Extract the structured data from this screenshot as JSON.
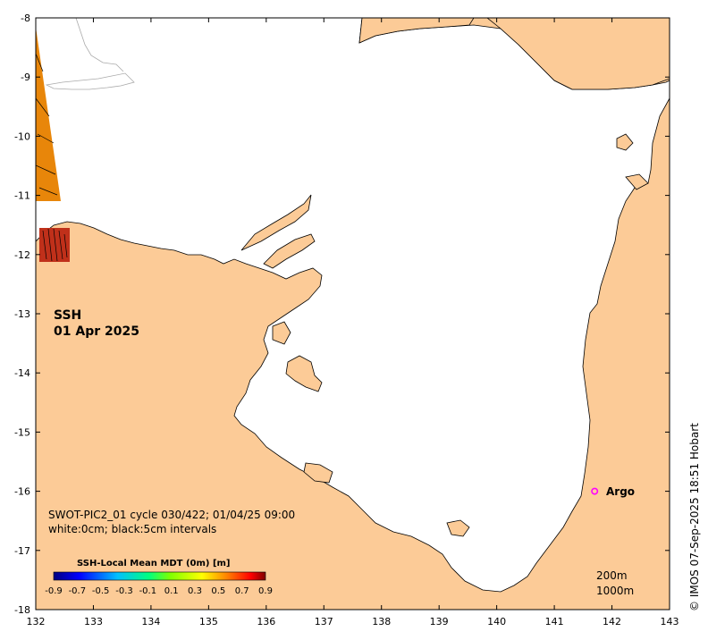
{
  "map": {
    "title": "SSH",
    "date": "01 Apr 2025",
    "pass_info": "SWOT-PIC2_01 cycle 030/422; 01/04/25 09:00",
    "contour_info": "white:0cm; black:5cm intervals",
    "credit": "© IMOS 07-Sep-2025 18:51 Hobart",
    "colors": {
      "land": "#fccb97",
      "sea": "#ffffff",
      "argo": "#ff00ff"
    }
  },
  "axes": {
    "x_ticks": [
      "132",
      "133",
      "134",
      "135",
      "136",
      "137",
      "138",
      "139",
      "140",
      "141",
      "142",
      "143"
    ],
    "y_ticks": [
      "-8",
      "-9",
      "-10",
      "-11",
      "-12",
      "-13",
      "-14",
      "-15",
      "-16",
      "-17",
      "-18"
    ],
    "xlim": [
      132,
      143
    ],
    "ylim": [
      -18,
      -8
    ]
  },
  "colorbar": {
    "title": "SSH-Local Mean MDT (0m) [m]",
    "ticks": [
      "-0.9",
      "-0.7",
      "-0.5",
      "-0.3",
      "-0.1",
      "0.1",
      "0.3",
      "0.5",
      "0.7",
      "0.9"
    ],
    "range": [
      -0.9,
      0.9
    ]
  },
  "markers": {
    "argo": {
      "label": "Argo",
      "lon": 141.7,
      "lat": -16.0
    }
  },
  "depth_labels": {
    "d200": "200m",
    "d1000": "1000m"
  }
}
